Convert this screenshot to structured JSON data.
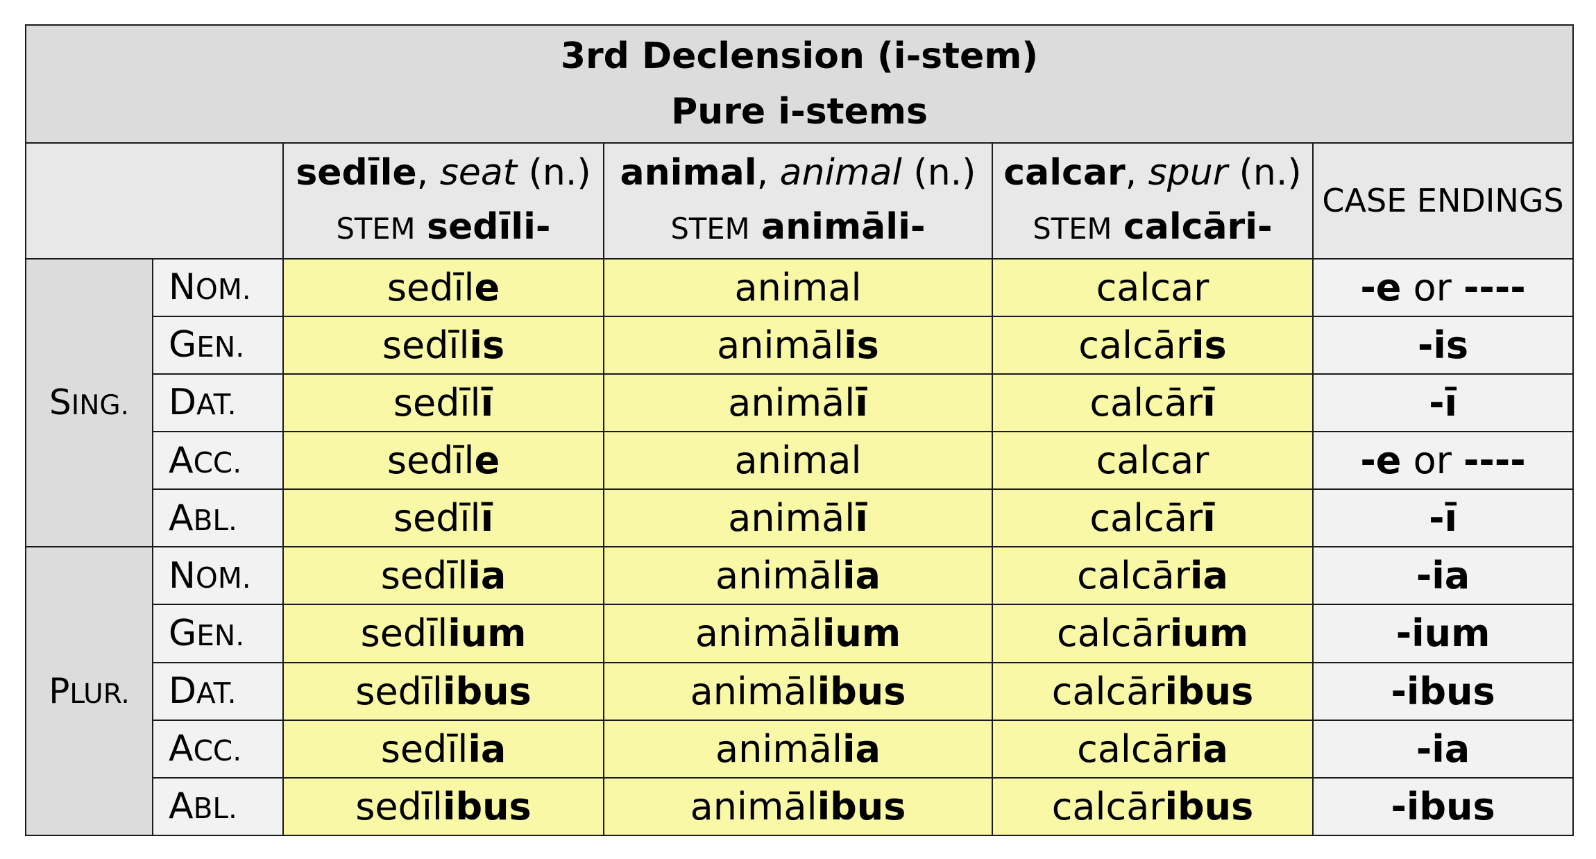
{
  "title": {
    "line1": "3rd Declension (i-stem)",
    "line2": "Pure i-stems"
  },
  "columns": [
    {
      "lemma": "sedīle",
      "gloss": "seat",
      "gender": "(n.)",
      "stem_label": "STEM",
      "stem": "sedīli-"
    },
    {
      "lemma": "animal",
      "gloss": "animal",
      "gender": "(n.)",
      "stem_label": "STEM",
      "stem": "animāli-"
    },
    {
      "lemma": "calcar",
      "gloss": "spur",
      "gender": "(n.)",
      "stem_label": "STEM",
      "stem": "calcāri-"
    }
  ],
  "endings_header": "CASE ENDINGS",
  "numbers": {
    "singular": {
      "first": "S",
      "rest": "ING."
    },
    "plural": {
      "first": "P",
      "rest": "LUR."
    }
  },
  "cases": {
    "nom": {
      "first": "N",
      "rest": "OM."
    },
    "gen": {
      "first": "G",
      "rest": "EN."
    },
    "dat": {
      "first": "D",
      "rest": "AT."
    },
    "acc": {
      "first": "A",
      "rest": "CC."
    },
    "abl": {
      "first": "A",
      "rest": "BL."
    }
  },
  "singular_rows": [
    {
      "forms": [
        {
          "stem": "sedīl",
          "ending": "e"
        },
        {
          "stem": "animal",
          "ending": ""
        },
        {
          "stem": "calcar",
          "ending": ""
        }
      ],
      "ending": "-e",
      "ending_or": " or ",
      "ending_alt": "----"
    },
    {
      "forms": [
        {
          "stem": "sedīl",
          "ending": "is"
        },
        {
          "stem": "animāl",
          "ending": "is"
        },
        {
          "stem": "calcār",
          "ending": "is"
        }
      ],
      "ending": "-is",
      "ending_or": "",
      "ending_alt": ""
    },
    {
      "forms": [
        {
          "stem": "sedīl",
          "ending": "ī"
        },
        {
          "stem": "animāl",
          "ending": "ī"
        },
        {
          "stem": "calcār",
          "ending": "ī"
        }
      ],
      "ending": "-ī",
      "ending_or": "",
      "ending_alt": ""
    },
    {
      "forms": [
        {
          "stem": "sedīl",
          "ending": "e"
        },
        {
          "stem": "animal",
          "ending": ""
        },
        {
          "stem": "calcar",
          "ending": ""
        }
      ],
      "ending": "-e",
      "ending_or": " or ",
      "ending_alt": "----"
    },
    {
      "forms": [
        {
          "stem": "sedīl",
          "ending": "ī"
        },
        {
          "stem": "animāl",
          "ending": "ī"
        },
        {
          "stem": "calcār",
          "ending": "ī"
        }
      ],
      "ending": "-ī",
      "ending_or": "",
      "ending_alt": ""
    }
  ],
  "plural_rows": [
    {
      "forms": [
        {
          "stem": "sedīl",
          "ending": "ia"
        },
        {
          "stem": "animāl",
          "ending": "ia"
        },
        {
          "stem": "calcār",
          "ending": "ia"
        }
      ],
      "ending": "-ia"
    },
    {
      "forms": [
        {
          "stem": "sedīl",
          "ending": "ium"
        },
        {
          "stem": "animāl",
          "ending": "ium"
        },
        {
          "stem": "calcār",
          "ending": "ium"
        }
      ],
      "ending": "-ium"
    },
    {
      "forms": [
        {
          "stem": "sedīl",
          "ending": "ibus"
        },
        {
          "stem": "animāl",
          "ending": "ibus"
        },
        {
          "stem": "calcār",
          "ending": "ibus"
        }
      ],
      "ending": "-ibus"
    },
    {
      "forms": [
        {
          "stem": "sedīl",
          "ending": "ia"
        },
        {
          "stem": "animāl",
          "ending": "ia"
        },
        {
          "stem": "calcār",
          "ending": "ia"
        }
      ],
      "ending": "-ia"
    },
    {
      "forms": [
        {
          "stem": "sedīl",
          "ending": "ibus"
        },
        {
          "stem": "animāl",
          "ending": "ibus"
        },
        {
          "stem": "calcār",
          "ending": "ibus"
        }
      ],
      "ending": "-ibus"
    }
  ],
  "colors": {
    "title_bg": "#dcdcdc",
    "header_bg": "#e8e8e8",
    "form_bg": "#f8f8a6",
    "case_bg": "#f2f2f2",
    "border": "#1a1a1a"
  }
}
